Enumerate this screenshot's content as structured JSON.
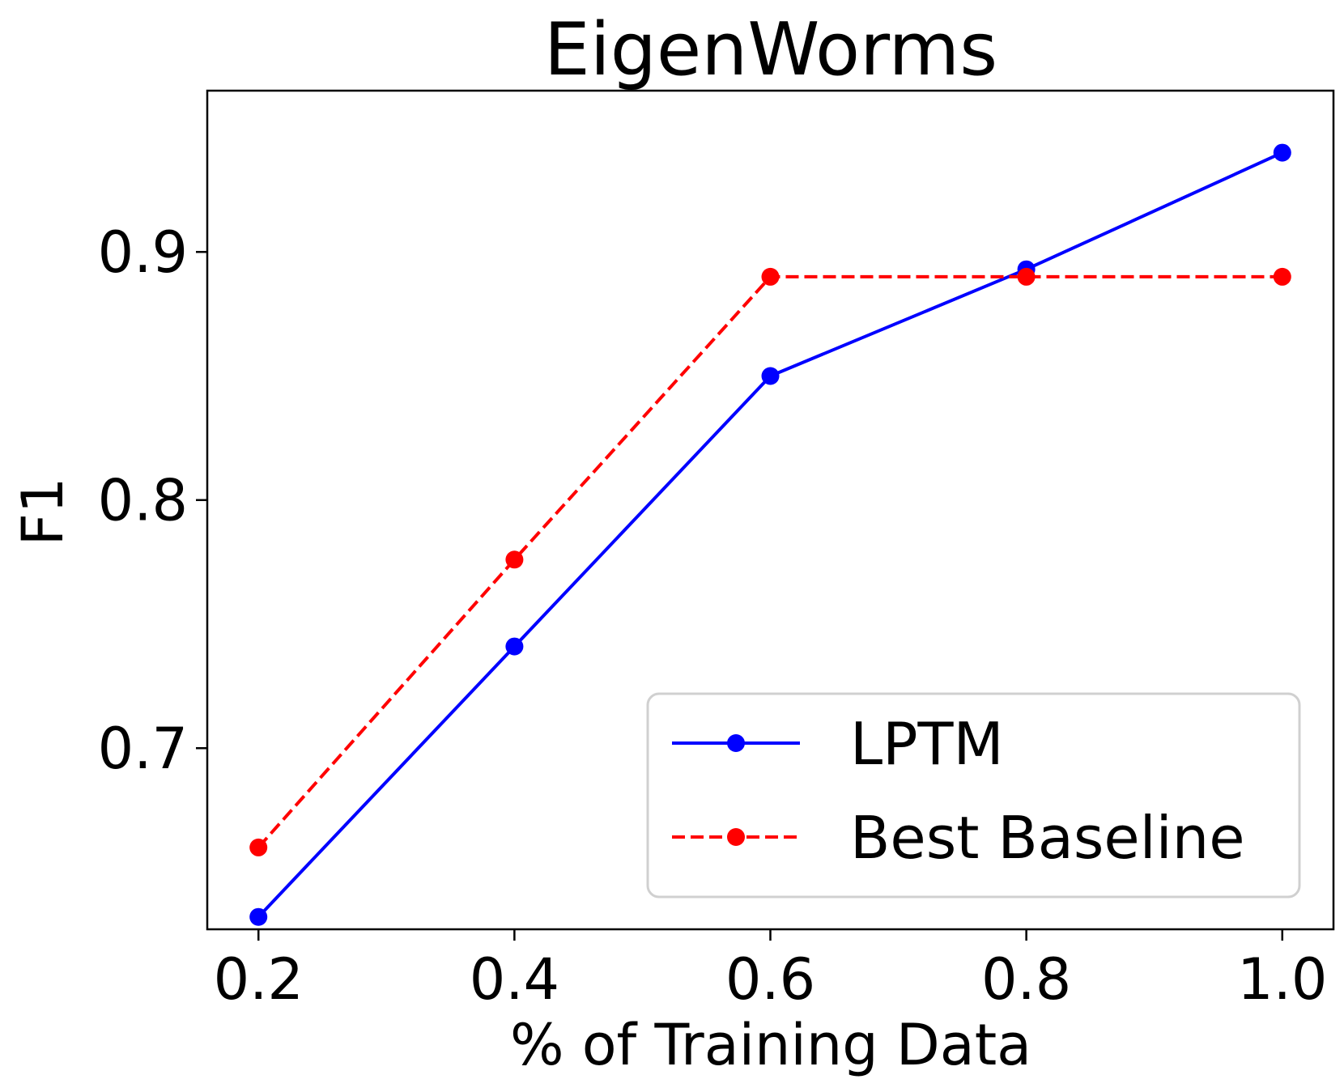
{
  "chart_data": {
    "type": "line",
    "title": "EigenWorms",
    "xlabel": "% of Training Data",
    "ylabel": "F1",
    "x": [
      0.2,
      0.4,
      0.6,
      0.8,
      1.0
    ],
    "xlim": [
      0.16,
      1.04
    ],
    "ylim": [
      0.627,
      0.965
    ],
    "xticks": [
      0.2,
      0.4,
      0.6,
      0.8,
      1.0
    ],
    "xtick_labels": [
      "0.2",
      "0.4",
      "0.6",
      "0.8",
      "1.0"
    ],
    "yticks": [
      0.7,
      0.8,
      0.9
    ],
    "ytick_labels": [
      "0.7",
      "0.8",
      "0.9"
    ],
    "grid": false,
    "legend_position": "lower-right",
    "series": [
      {
        "name": "LPTM",
        "values": [
          0.632,
          0.741,
          0.85,
          0.893,
          0.94
        ],
        "color": "#0000ff",
        "linestyle": "solid",
        "marker": "circle"
      },
      {
        "name": "Best Baseline",
        "values": [
          0.66,
          0.776,
          0.89,
          0.89,
          0.89
        ],
        "color": "#ff0000",
        "linestyle": "dashed",
        "marker": "circle"
      }
    ]
  }
}
